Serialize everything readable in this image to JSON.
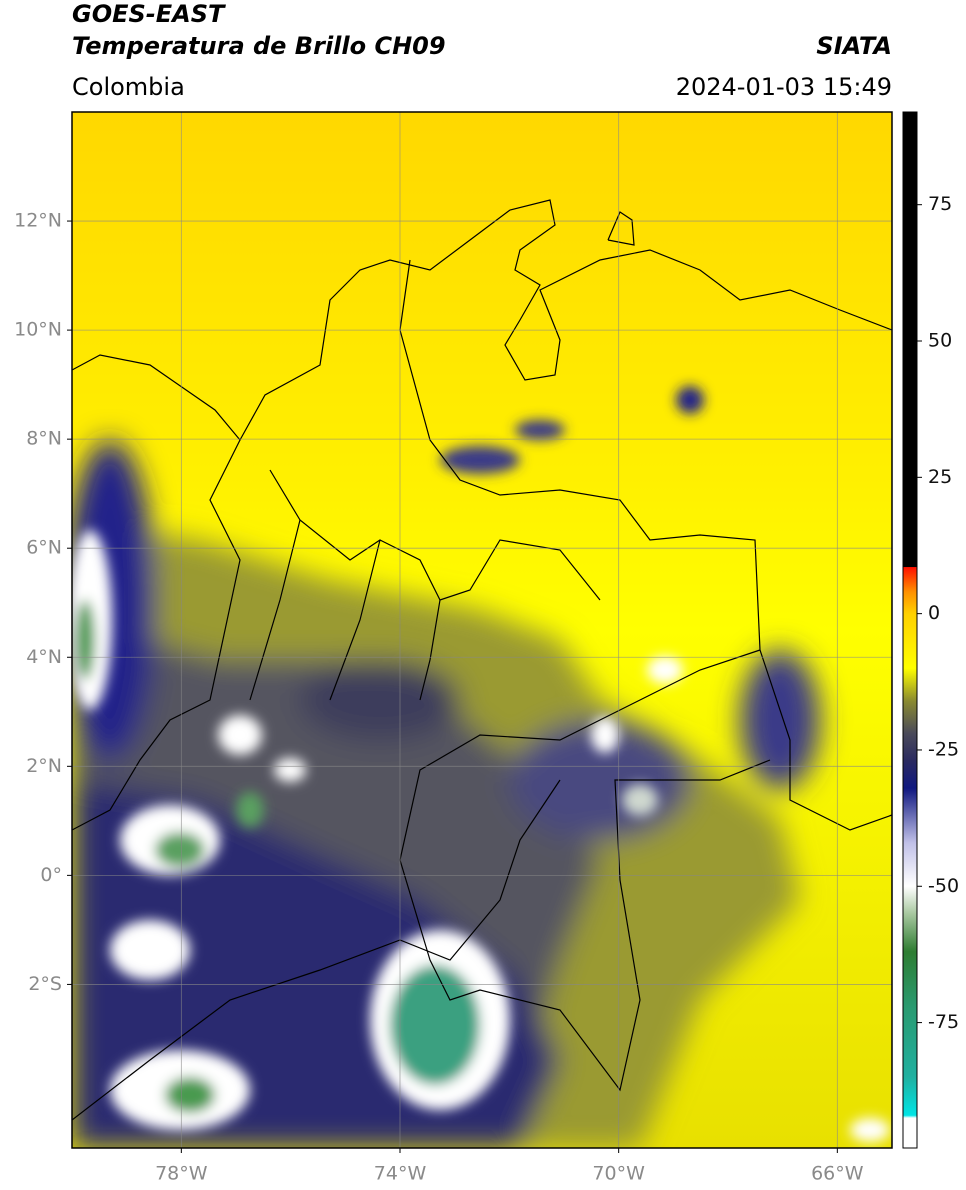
{
  "header": {
    "title": "GOES-EAST",
    "subtitle": "Temperatura de Brillo CH09",
    "source": "SIATA",
    "region": "Colombia",
    "datetime": "2024-01-03 15:49"
  },
  "map": {
    "lon_range": [
      -80,
      -65
    ],
    "lat_range": [
      -5,
      14
    ],
    "grid": true,
    "lon_ticks": [
      {
        "value": -78,
        "label": "78°W"
      },
      {
        "value": -74,
        "label": "74°W"
      },
      {
        "value": -70,
        "label": "70°W"
      },
      {
        "value": -66,
        "label": "66°W"
      }
    ],
    "lat_ticks": [
      {
        "value": 12,
        "label": "12°N"
      },
      {
        "value": 10,
        "label": "10°N"
      },
      {
        "value": 8,
        "label": "8°N"
      },
      {
        "value": 6,
        "label": "6°N"
      },
      {
        "value": 4,
        "label": "4°N"
      },
      {
        "value": 2,
        "label": "2°N"
      },
      {
        "value": 0,
        "label": "0°"
      },
      {
        "value": -2,
        "label": "2°S"
      }
    ]
  },
  "colorbar": {
    "range": [
      -98,
      92
    ],
    "ticks": [
      75,
      50,
      25,
      0,
      -25,
      -50,
      -75
    ],
    "stops": [
      {
        "value": -98,
        "color": "#ffffff"
      },
      {
        "value": -92.5,
        "color": "#ffffff"
      },
      {
        "value": -92,
        "color": "#00e5e5"
      },
      {
        "value": -85,
        "color": "#20b0a0"
      },
      {
        "value": -72,
        "color": "#2a9a70"
      },
      {
        "value": -62,
        "color": "#2e7d32"
      },
      {
        "value": -55,
        "color": "#a8c8a0"
      },
      {
        "value": -50,
        "color": "#ffffff"
      },
      {
        "value": -42,
        "color": "#c0c0e8"
      },
      {
        "value": -32,
        "color": "#101880"
      },
      {
        "value": -27,
        "color": "#2a2a60"
      },
      {
        "value": -22,
        "color": "#4a4a5a"
      },
      {
        "value": -16,
        "color": "#8a8a30"
      },
      {
        "value": -10,
        "color": "#ffff00"
      },
      {
        "value": 0,
        "color": "#ffd000"
      },
      {
        "value": 4,
        "color": "#ff9000"
      },
      {
        "value": 8.5,
        "color": "#ff1000"
      },
      {
        "value": 8.6,
        "color": "#000000"
      },
      {
        "value": 92,
        "color": "#000000"
      }
    ]
  }
}
